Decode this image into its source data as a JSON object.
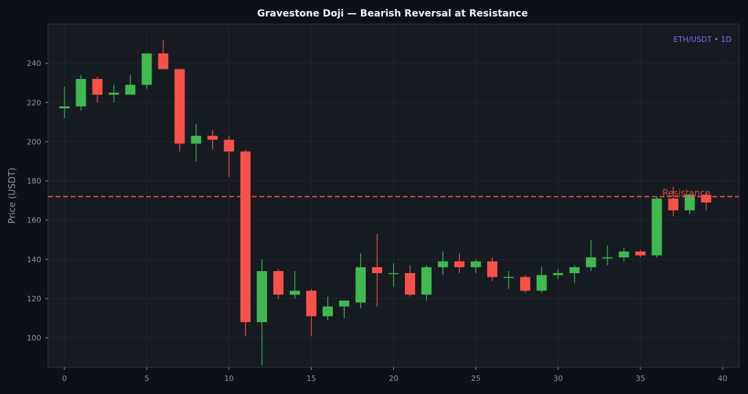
{
  "chart_data": {
    "type": "candlestick",
    "title": "Gravestone Doji — Bearish Reversal at Resistance",
    "xlabel": "",
    "ylabel": "Price (USDT)",
    "xlim": [
      -1,
      41
    ],
    "ylim": [
      85,
      260
    ],
    "x_ticks": [
      0,
      5,
      10,
      15,
      20,
      25,
      30,
      35,
      40
    ],
    "y_ticks": [
      100,
      120,
      140,
      160,
      180,
      200,
      220,
      240
    ],
    "grid": true,
    "tag": "ETH/USDT • 1D",
    "resistance": {
      "value": 172,
      "label": "Resistance"
    },
    "colors": {
      "background": "#0d1117",
      "plot_bg": "#161b22",
      "grid": "#21262d",
      "up": "#3fb950",
      "down": "#f85149",
      "resistance": "#f85149",
      "tag": "#7d6ff0"
    },
    "candles": [
      {
        "x": 0,
        "open": 217,
        "high": 228,
        "low": 212,
        "close": 218
      },
      {
        "x": 1,
        "open": 218,
        "high": 234,
        "low": 216,
        "close": 232
      },
      {
        "x": 2,
        "open": 232,
        "high": 233,
        "low": 220,
        "close": 224
      },
      {
        "x": 3,
        "open": 224,
        "high": 229,
        "low": 220,
        "close": 225
      },
      {
        "x": 4,
        "open": 224,
        "high": 234,
        "low": 224,
        "close": 229
      },
      {
        "x": 5,
        "open": 229,
        "high": 245,
        "low": 227,
        "close": 245
      },
      {
        "x": 6,
        "open": 245,
        "high": 252,
        "low": 237,
        "close": 237
      },
      {
        "x": 7,
        "open": 237,
        "high": 237,
        "low": 195,
        "close": 199
      },
      {
        "x": 8,
        "open": 199,
        "high": 209,
        "low": 190,
        "close": 203
      },
      {
        "x": 9,
        "open": 203,
        "high": 206,
        "low": 196,
        "close": 201
      },
      {
        "x": 10,
        "open": 201,
        "high": 203,
        "low": 182,
        "close": 195
      },
      {
        "x": 11,
        "open": 195,
        "high": 196,
        "low": 101,
        "close": 108
      },
      {
        "x": 12,
        "open": 108,
        "high": 140,
        "low": 86,
        "close": 134
      },
      {
        "x": 13,
        "open": 134,
        "high": 135,
        "low": 120,
        "close": 122
      },
      {
        "x": 14,
        "open": 122,
        "high": 134,
        "low": 120,
        "close": 124
      },
      {
        "x": 15,
        "open": 124,
        "high": 125,
        "low": 101,
        "close": 111
      },
      {
        "x": 16,
        "open": 111,
        "high": 121,
        "low": 109,
        "close": 116
      },
      {
        "x": 17,
        "open": 116,
        "high": 119,
        "low": 110,
        "close": 119
      },
      {
        "x": 18,
        "open": 118,
        "high": 143,
        "low": 115,
        "close": 136
      },
      {
        "x": 19,
        "open": 136,
        "high": 153,
        "low": 116,
        "close": 133
      },
      {
        "x": 20,
        "open": 133,
        "high": 138,
        "low": 126,
        "close": 133
      },
      {
        "x": 21,
        "open": 133,
        "high": 137,
        "low": 121,
        "close": 122
      },
      {
        "x": 22,
        "open": 122,
        "high": 137,
        "low": 119,
        "close": 136
      },
      {
        "x": 23,
        "open": 136,
        "high": 144,
        "low": 132,
        "close": 139
      },
      {
        "x": 24,
        "open": 139,
        "high": 143,
        "low": 133,
        "close": 136
      },
      {
        "x": 25,
        "open": 136,
        "high": 140,
        "low": 133,
        "close": 139
      },
      {
        "x": 26,
        "open": 139,
        "high": 141,
        "low": 129,
        "close": 131
      },
      {
        "x": 27,
        "open": 131,
        "high": 134,
        "low": 125,
        "close": 131
      },
      {
        "x": 28,
        "open": 131,
        "high": 132,
        "low": 123,
        "close": 124
      },
      {
        "x": 29,
        "open": 124,
        "high": 136,
        "low": 123,
        "close": 132
      },
      {
        "x": 30,
        "open": 132,
        "high": 135,
        "low": 130,
        "close": 133
      },
      {
        "x": 31,
        "open": 133,
        "high": 137,
        "low": 128,
        "close": 136
      },
      {
        "x": 32,
        "open": 136,
        "high": 150,
        "low": 134,
        "close": 141
      },
      {
        "x": 33,
        "open": 141,
        "high": 147,
        "low": 137,
        "close": 141
      },
      {
        "x": 34,
        "open": 141,
        "high": 146,
        "low": 139,
        "close": 144
      },
      {
        "x": 35,
        "open": 144,
        "high": 145,
        "low": 141,
        "close": 142
      },
      {
        "x": 36,
        "open": 142,
        "high": 172,
        "low": 141,
        "close": 171
      },
      {
        "x": 37,
        "open": 171,
        "high": 177,
        "low": 162,
        "close": 165
      },
      {
        "x": 38,
        "open": 165,
        "high": 173,
        "low": 163,
        "close": 173
      },
      {
        "x": 39,
        "open": 173,
        "high": 174,
        "low": 165,
        "close": 169
      }
    ]
  }
}
